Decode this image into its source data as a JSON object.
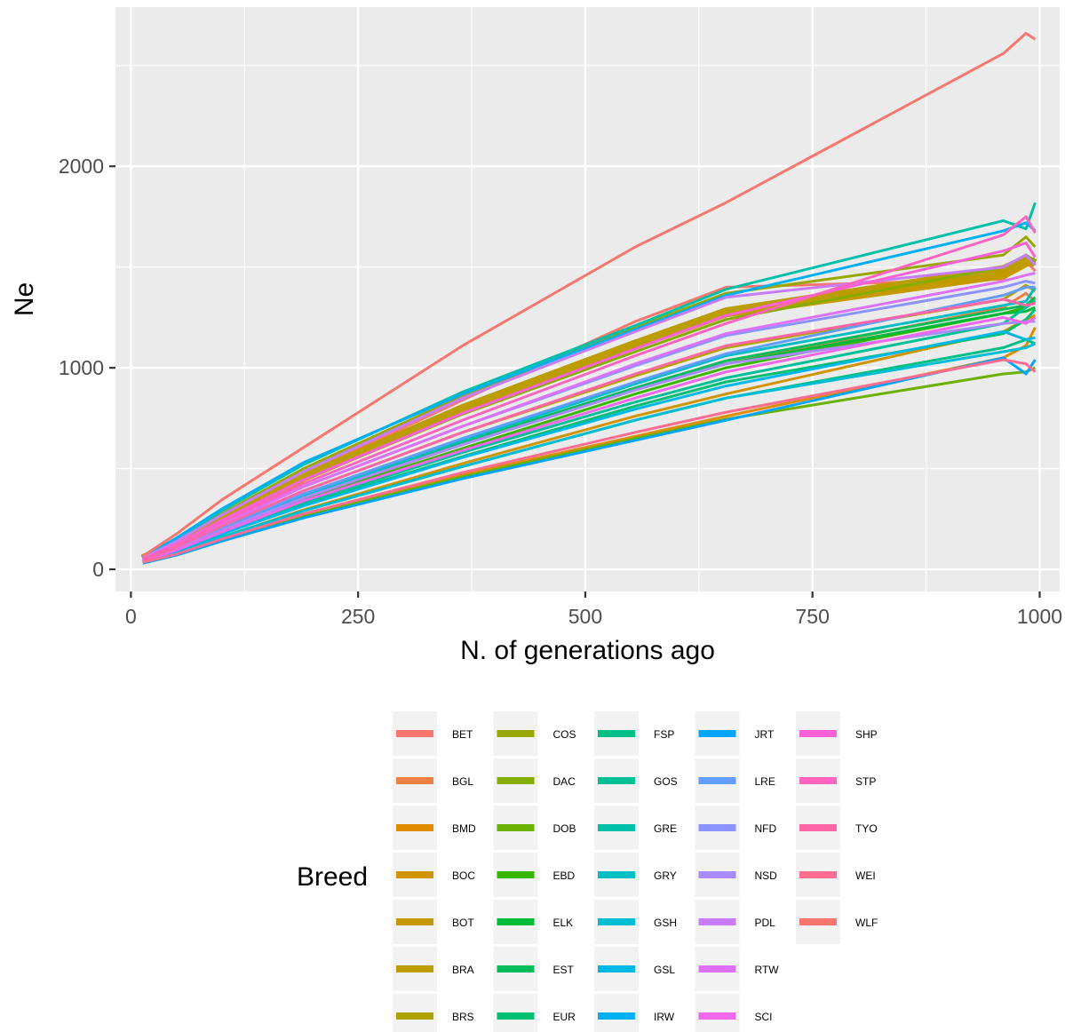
{
  "chart_data": {
    "type": "line",
    "xlabel": "N. of generations ago",
    "ylabel": "Ne",
    "xlim": [
      -17,
      1022
    ],
    "ylim": [
      -110,
      2790
    ],
    "xticks": [
      0,
      250,
      500,
      750,
      1000
    ],
    "xtick_labels": [
      "0",
      "250",
      "500",
      "750",
      "1000"
    ],
    "yticks": [
      0,
      1000,
      2000
    ],
    "ytick_labels": [
      "0",
      "1000",
      "2000"
    ],
    "grid": true,
    "legend": {
      "title": "Breed",
      "placement": "bottom",
      "columns": 5
    },
    "x": [
      13,
      50,
      100,
      190,
      365,
      555,
      655,
      960,
      985,
      995
    ],
    "series": [
      {
        "name": "BET",
        "color": "#F8766D",
        "values": [
          45,
          120,
          245,
          470,
          840,
          1230,
          1400,
          1440,
          1530,
          1480
        ]
      },
      {
        "name": "BGL",
        "color": "#EE8044",
        "values": [
          40,
          95,
          190,
          350,
          620,
          890,
          1020,
          1300,
          1370,
          1330
        ]
      },
      {
        "name": "BMD",
        "color": "#E08B00",
        "values": [
          35,
          75,
          150,
          270,
          470,
          660,
          760,
          1050,
          1110,
          1200
        ]
      },
      {
        "name": "BOC",
        "color": "#CF9400",
        "values": [
          35,
          80,
          160,
          295,
          525,
          760,
          870,
          1180,
          1240,
          1260
        ]
      },
      {
        "name": "BOT",
        "color": "#C49A00",
        "values": [
          50,
          130,
          250,
          455,
          790,
          1110,
          1270,
          1460,
          1520,
          1530
        ]
      },
      {
        "name": "BRA",
        "color": "#BB9D00",
        "values": [
          55,
          132,
          255,
          460,
          800,
          1120,
          1280,
          1490,
          1540,
          1520
        ]
      },
      {
        "name": "BRS",
        "color": "#B0A200",
        "values": [
          45,
          110,
          215,
          390,
          680,
          960,
          1100,
          1340,
          1410,
          1380
        ]
      },
      {
        "name": "COS",
        "color": "#99A800",
        "values": [
          55,
          140,
          275,
          500,
          860,
          1200,
          1370,
          1560,
          1650,
          1600
        ]
      },
      {
        "name": "DAC",
        "color": "#86AC00",
        "values": [
          50,
          125,
          245,
          445,
          770,
          1080,
          1240,
          1500,
          1560,
          1530
        ]
      },
      {
        "name": "DOB",
        "color": "#6BB100",
        "values": [
          35,
          75,
          145,
          265,
          460,
          650,
          745,
          970,
          980,
          1000
        ]
      },
      {
        "name": "EBD",
        "color": "#38B600",
        "values": [
          40,
          95,
          190,
          345,
          600,
          870,
          1000,
          1270,
          1300,
          1330
        ]
      },
      {
        "name": "ELK",
        "color": "#00BA38",
        "values": [
          40,
          100,
          195,
          355,
          620,
          890,
          1020,
          1270,
          1280,
          1300
        ]
      },
      {
        "name": "EST",
        "color": "#00BC5A",
        "values": [
          40,
          100,
          200,
          360,
          630,
          900,
          1035,
          1290,
          1310,
          1350
        ]
      },
      {
        "name": "EUR",
        "color": "#00BE72",
        "values": [
          40,
          90,
          175,
          320,
          560,
          810,
          930,
          1170,
          1240,
          1290
        ]
      },
      {
        "name": "FSP",
        "color": "#00BF86",
        "values": [
          35,
          80,
          160,
          290,
          510,
          740,
          850,
          1100,
          1140,
          1120
        ]
      },
      {
        "name": "GOS",
        "color": "#00C098",
        "values": [
          40,
          90,
          180,
          330,
          580,
          830,
          950,
          1220,
          1300,
          1330
        ]
      },
      {
        "name": "GRE",
        "color": "#00C0AA",
        "values": [
          55,
          145,
          290,
          520,
          880,
          1210,
          1390,
          1730,
          1690,
          1820
        ]
      },
      {
        "name": "GRY",
        "color": "#00BFC4",
        "values": [
          40,
          100,
          200,
          365,
          640,
          920,
          1060,
          1310,
          1330,
          1400
        ]
      },
      {
        "name": "GSH",
        "color": "#00BDD4",
        "values": [
          35,
          80,
          160,
          290,
          510,
          740,
          850,
          1080,
          1100,
          1120
        ]
      },
      {
        "name": "GSL",
        "color": "#00B8E5",
        "values": [
          40,
          90,
          175,
          315,
          555,
          795,
          910,
          1180,
          1140,
          1150
        ]
      },
      {
        "name": "IRW",
        "color": "#00B0F6",
        "values": [
          60,
          155,
          300,
          530,
          870,
          1190,
          1360,
          1680,
          1720,
          1680
        ]
      },
      {
        "name": "JRT",
        "color": "#00A5FF",
        "values": [
          30,
          70,
          140,
          255,
          450,
          640,
          740,
          1050,
          970,
          1040
        ]
      },
      {
        "name": "LRE",
        "color": "#619CFF",
        "values": [
          45,
          105,
          205,
          375,
          650,
          930,
          1070,
          1360,
          1400,
          1400
        ]
      },
      {
        "name": "NFD",
        "color": "#8B93FF",
        "values": [
          45,
          115,
          225,
          410,
          710,
          1010,
          1160,
          1400,
          1430,
          1420
        ]
      },
      {
        "name": "NSD",
        "color": "#A98AFF",
        "values": [
          40,
          100,
          195,
          355,
          620,
          890,
          1020,
          1220,
          1230,
          1230
        ]
      },
      {
        "name": "PDL",
        "color": "#C77CFF",
        "values": [
          55,
          140,
          270,
          485,
          850,
          1180,
          1350,
          1500,
          1560,
          1510
        ]
      },
      {
        "name": "RTW",
        "color": "#DE71F9",
        "values": [
          45,
          115,
          225,
          410,
          710,
          1020,
          1170,
          1430,
          1460,
          1470
        ]
      },
      {
        "name": "SCI",
        "color": "#EF67EB",
        "values": [
          40,
          95,
          185,
          340,
          590,
          850,
          980,
          1250,
          1220,
          1250
        ]
      },
      {
        "name": "SHP",
        "color": "#FB61D7",
        "values": [
          50,
          125,
          245,
          445,
          775,
          1095,
          1260,
          1580,
          1620,
          1550
        ]
      },
      {
        "name": "STP",
        "color": "#FF62BF",
        "values": [
          50,
          120,
          235,
          425,
          740,
          1060,
          1220,
          1660,
          1750,
          1670
        ]
      },
      {
        "name": "TYO",
        "color": "#FF66A8",
        "values": [
          45,
          110,
          215,
          390,
          680,
          970,
          1110,
          1340,
          1310,
          1320
        ]
      },
      {
        "name": "WEI",
        "color": "#FF6C91",
        "values": [
          35,
          75,
          150,
          275,
          480,
          680,
          780,
          1040,
          1020,
          980
        ]
      },
      {
        "name": "WLF",
        "color": "#F8766D",
        "values": [
          65,
          175,
          345,
          605,
          1110,
          1600,
          1820,
          2560,
          2660,
          2630
        ]
      }
    ]
  }
}
